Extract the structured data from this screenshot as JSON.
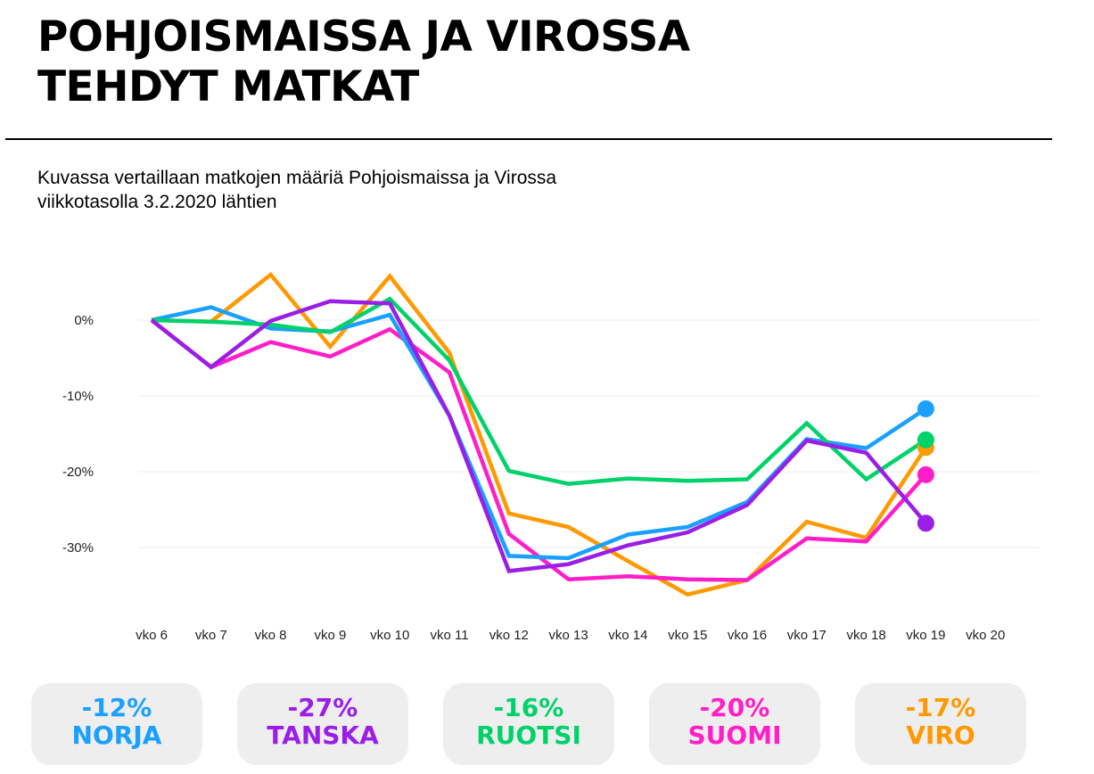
{
  "header": {
    "title_line1": "POHJOISMAISSA JA VIROSSA",
    "title_line2": "TEHDYT MATKAT",
    "subtitle_line1": "Kuvassa vertaillaan matkojen määriä Pohjoismaissa ja Virossa",
    "subtitle_line2": "viikkotasolla 3.2.2020 lähtien"
  },
  "chart_data": {
    "type": "line",
    "title": "POHJOISMAISSA JA VIROSSA TEHDYT MATKAT",
    "xlabel": "",
    "ylabel": "",
    "x": [
      "vko 6",
      "vko 7",
      "vko 8",
      "vko 9",
      "vko 10",
      "vko 11",
      "vko 12",
      "vko 13",
      "vko 14",
      "vko 15",
      "vko 16",
      "vko 17",
      "vko 18",
      "vko 19",
      "vko 20"
    ],
    "ylim": [
      -39,
      7
    ],
    "yticks": [
      0,
      -10,
      -20,
      -30
    ],
    "ytick_labels": [
      "0%",
      "-10%",
      "-20%",
      "-30%"
    ],
    "grid": true,
    "legend": "cards-bottom",
    "series": [
      {
        "name": "VIRO",
        "color": "#ff9900",
        "values": [
          0,
          -0.2,
          6,
          -3.5,
          5.8,
          -4.3,
          -25.5,
          -27.3,
          -31.8,
          -36.2,
          -34.3,
          -26.6,
          -28.7,
          -16.8,
          null
        ]
      },
      {
        "name": "SUOMI",
        "color": "#ff1ec8",
        "values": [
          0,
          -6.2,
          -2.9,
          -4.8,
          -1.2,
          -6.9,
          -28.2,
          -34.2,
          -33.8,
          -34.2,
          -34.3,
          -28.8,
          -29.2,
          -20.4,
          null
        ]
      },
      {
        "name": "NORJA",
        "color": "#1aa0ff",
        "values": [
          0,
          1.7,
          -1.1,
          -1.5,
          0.7,
          -12.6,
          -31.1,
          -31.4,
          -28.3,
          -27.3,
          -24.0,
          -15.7,
          -16.9,
          -11.7,
          null
        ]
      },
      {
        "name": "RUOTSI",
        "color": "#00d26a",
        "values": [
          0,
          -0.2,
          -0.6,
          -1.6,
          2.8,
          -5.3,
          -19.9,
          -21.6,
          -20.9,
          -21.2,
          -21.0,
          -13.6,
          -21.0,
          -15.8,
          null
        ]
      },
      {
        "name": "TANSKA",
        "color": "#9b1ee6",
        "values": [
          0,
          -6.2,
          -0.1,
          2.5,
          2.2,
          -12.6,
          -33.1,
          -32.2,
          -29.7,
          -28.0,
          -24.4,
          -15.9,
          -17.5,
          -26.8,
          null
        ]
      }
    ]
  },
  "cards": [
    {
      "pct": "-12%",
      "name": "NORJA",
      "color": "#1aa0ff"
    },
    {
      "pct": "-27%",
      "name": "TANSKA",
      "color": "#9b1ee6"
    },
    {
      "pct": "-16%",
      "name": "RUOTSI",
      "color": "#00d26a"
    },
    {
      "pct": "-20%",
      "name": "SUOMI",
      "color": "#ff1ec8"
    },
    {
      "pct": "-17%",
      "name": "VIRO",
      "color": "#ff9900"
    }
  ]
}
